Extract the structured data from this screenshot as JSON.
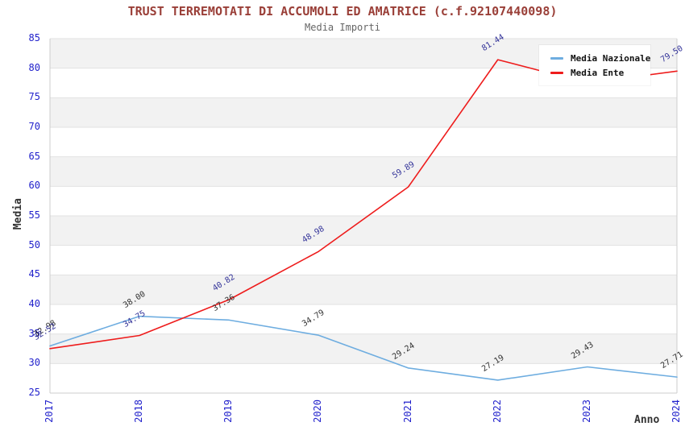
{
  "chart_data": {
    "type": "line",
    "title": "TRUST TERREMOTATI DI ACCUMOLI ED AMATRICE (c.f.92107440098)",
    "subtitle": "Media Importi",
    "xlabel": "Anno",
    "ylabel": "Media",
    "x": [
      "2017",
      "2018",
      "2019",
      "2020",
      "2021",
      "2022",
      "2023",
      "2024"
    ],
    "ylim": [
      25,
      85
    ],
    "ytick_step": 5,
    "grid": true,
    "band_fill": true,
    "legend_position": "top-right",
    "series": [
      {
        "name": "Media Nazionale",
        "color": "#6eade0",
        "label_color": "#333333",
        "values": [
          32.98,
          38.0,
          37.36,
          34.79,
          29.24,
          27.19,
          29.43,
          27.71
        ],
        "labels": [
          "32.98",
          "38.00",
          "37.36",
          "34.79",
          "29.24",
          "27.19",
          "29.43",
          "27.71"
        ]
      },
      {
        "name": "Media Ente",
        "color": "#ee1c1c",
        "label_color": "#333399",
        "values": [
          32.52,
          34.75,
          40.82,
          48.98,
          59.89,
          81.44,
          77.5,
          79.5
        ],
        "labels": [
          "32.52",
          "34.75",
          "40.82",
          "48.98",
          "59.89",
          "81.44",
          null,
          "79.50"
        ]
      }
    ],
    "style": {
      "title_color": "#9a3f38",
      "subtitle_color": "#666666",
      "tick_color": "#2222cc",
      "axis_title_color": "#333333",
      "grid_color": "#e2e2e2",
      "band_color": "#f2f2f2",
      "border_color": "#cccccc"
    }
  }
}
